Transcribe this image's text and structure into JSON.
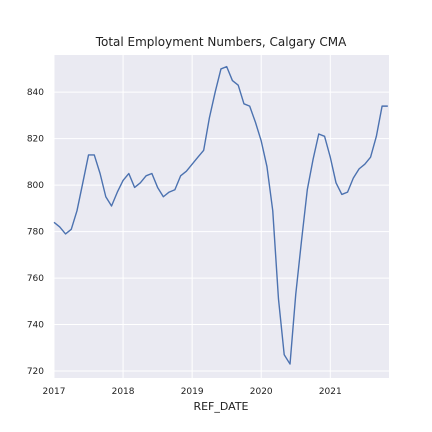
{
  "chart_data": {
    "type": "line",
    "title": "Total Employment Numbers, Calgary CMA",
    "xlabel": "REF_DATE",
    "ylabel": "",
    "xlim": [
      2017.0,
      2021.85
    ],
    "ylim": [
      717,
      856
    ],
    "xticks": [
      {
        "value": 2017,
        "label": "2017"
      },
      {
        "value": 2018,
        "label": "2018"
      },
      {
        "value": 2019,
        "label": "2019"
      },
      {
        "value": 2020,
        "label": "2020"
      },
      {
        "value": 2021,
        "label": "2021"
      }
    ],
    "yticks": [
      {
        "value": 720,
        "label": "720"
      },
      {
        "value": 740,
        "label": "740"
      },
      {
        "value": 760,
        "label": "760"
      },
      {
        "value": 780,
        "label": "780"
      },
      {
        "value": 800,
        "label": "800"
      },
      {
        "value": 820,
        "label": "820"
      },
      {
        "value": 840,
        "label": "840"
      }
    ],
    "grid": true,
    "x": [
      2017.0,
      2017.083,
      2017.167,
      2017.25,
      2017.333,
      2017.417,
      2017.5,
      2017.583,
      2017.667,
      2017.75,
      2017.833,
      2017.917,
      2018.0,
      2018.083,
      2018.167,
      2018.25,
      2018.333,
      2018.417,
      2018.5,
      2018.583,
      2018.667,
      2018.75,
      2018.833,
      2018.917,
      2019.0,
      2019.083,
      2019.167,
      2019.25,
      2019.333,
      2019.417,
      2019.5,
      2019.583,
      2019.667,
      2019.75,
      2019.833,
      2019.917,
      2020.0,
      2020.083,
      2020.167,
      2020.25,
      2020.333,
      2020.417,
      2020.5,
      2020.583,
      2020.667,
      2020.75,
      2020.833,
      2020.917,
      2021.0,
      2021.083,
      2021.167,
      2021.25,
      2021.333,
      2021.417,
      2021.5,
      2021.583,
      2021.667,
      2021.75,
      2021.833
    ],
    "series": [
      {
        "name": "",
        "color": "#4c72b0",
        "values": [
          784,
          782,
          779,
          781,
          789,
          801,
          813,
          813,
          805,
          795,
          791,
          797,
          802,
          805,
          799,
          801,
          804,
          805,
          799,
          795,
          797,
          798,
          804,
          806,
          809,
          812,
          815,
          829,
          840,
          850,
          851,
          845,
          843,
          835,
          834,
          827,
          819,
          808,
          789,
          751,
          727,
          723,
          753,
          776,
          798,
          811,
          822,
          821,
          812,
          801,
          796,
          797,
          803,
          807,
          809,
          812,
          821,
          834,
          834
        ]
      }
    ]
  },
  "colors": {
    "plot_background": "#eaeaf2",
    "grid": "#ffffff",
    "line": "#4c72b0"
  }
}
